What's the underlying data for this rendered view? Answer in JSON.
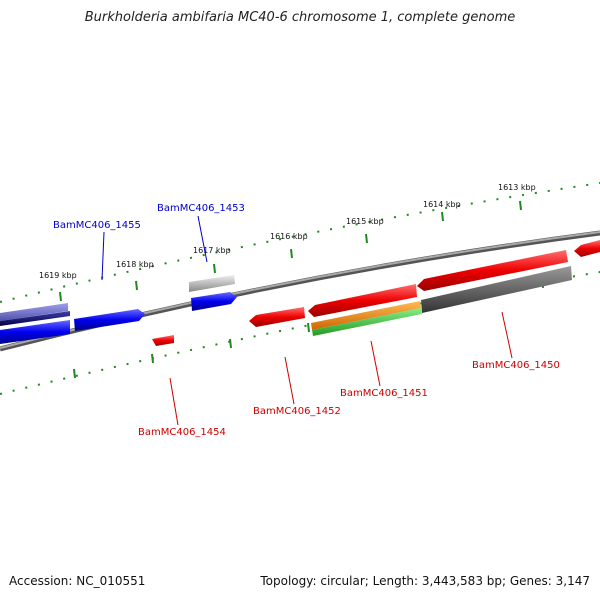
{
  "header": {
    "title": "Burkholderia ambifaria MC40-6 chromosome 1, complete genome"
  },
  "footer": {
    "accession": "Accession: NC_010551",
    "stats": "Topology: circular; Length: 3,443,583 bp; Genes: 3,147"
  },
  "colors": {
    "forward_label": "#0000cc",
    "reverse_label": "#cc0000",
    "backbone": "#888888",
    "tick": "#228822",
    "gene_blue": "#0000ee",
    "gene_red": "#ee0000",
    "gene_gray": "#666666",
    "gene_orange": "#ee8800",
    "gene_green": "#33bb33",
    "gene_purple": "#6666cc"
  },
  "ruler": {
    "tick_labels": [
      "1613 kbp",
      "1614 kbp",
      "1615 kbp",
      "1616 kbp",
      "1617 kbp",
      "1618 kbp",
      "1619 kbp"
    ]
  },
  "genes": {
    "labels": [
      "BamMC406_1455",
      "BamMC406_1453",
      "BamMC406_1454",
      "BamMC406_1452",
      "BamMC406_1451",
      "BamMC406_1450"
    ]
  }
}
